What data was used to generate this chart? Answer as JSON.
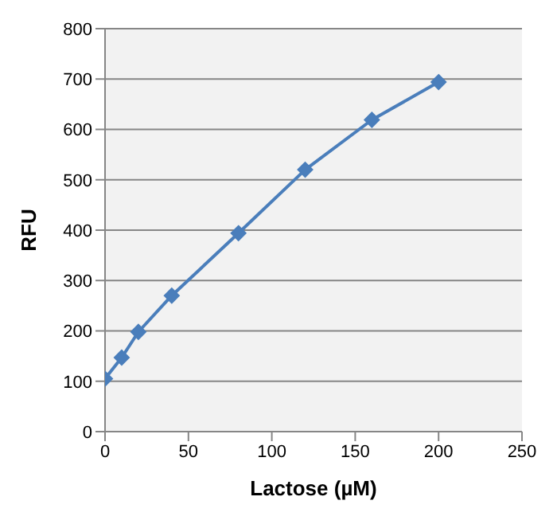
{
  "chart_data": {
    "type": "line",
    "xlabel": "Lactose (µM)",
    "ylabel": "RFU",
    "x": [
      0,
      10,
      20,
      40,
      80,
      120,
      160,
      200
    ],
    "series": [
      {
        "color": "#4a7ebb",
        "values": [
          105,
          147,
          198,
          270,
          394,
          520,
          619,
          694
        ]
      }
    ],
    "xlim": [
      0,
      250
    ],
    "xticks": [
      0,
      50,
      100,
      150,
      200,
      250
    ],
    "ylim": [
      0,
      800
    ],
    "yticks": [
      0,
      100,
      200,
      300,
      400,
      500,
      600,
      700,
      800
    ],
    "grid": "y",
    "legend": false,
    "marker": "diamond",
    "line_style": "solid"
  }
}
